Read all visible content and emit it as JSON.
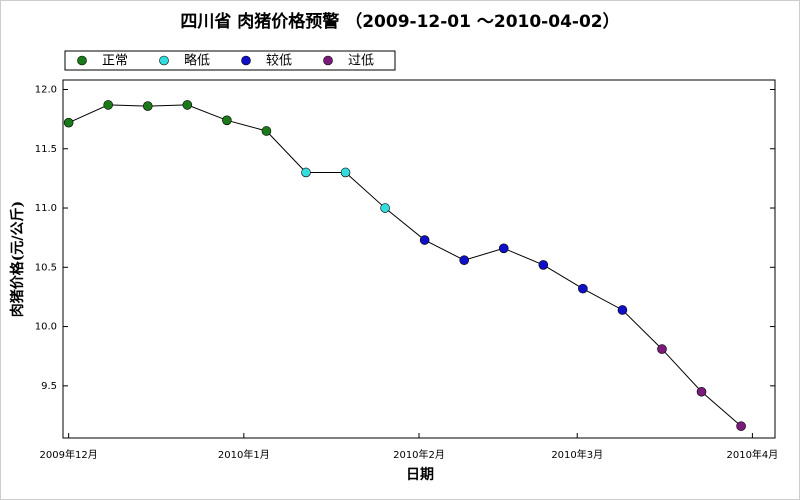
{
  "chart_data": {
    "type": "line",
    "title": "四川省 肉猪价格预警 （2009-12-01 ～2010-04-02）",
    "x_label": "日期",
    "y_label": "肉猪价格(元/公斤)",
    "x": [
      0,
      7,
      14,
      21,
      28,
      35,
      42,
      49,
      56,
      63,
      70,
      77,
      84,
      91,
      98,
      105,
      112,
      119
    ],
    "values": [
      11.72,
      11.87,
      11.86,
      11.87,
      11.74,
      11.65,
      11.3,
      11.3,
      11.0,
      10.73,
      10.56,
      10.66,
      10.52,
      10.32,
      10.14,
      9.81,
      9.45,
      9.16
    ],
    "point_colors": [
      "#1a7a1a",
      "#1a7a1a",
      "#1a7a1a",
      "#1a7a1a",
      "#1a7a1a",
      "#1a7a1a",
      "#33dddd",
      "#33dddd",
      "#33dddd",
      "#1010c8",
      "#1010c8",
      "#1010c8",
      "#1010c8",
      "#1010c8",
      "#1010c8",
      "#7a1a7a",
      "#7a1a7a",
      "#7a1a7a"
    ],
    "line_color": "#000000",
    "legend": [
      {
        "name": "正常",
        "color": "#1a7a1a"
      },
      {
        "name": "略低",
        "color": "#33dddd"
      },
      {
        "name": "较低",
        "color": "#1010c8"
      },
      {
        "name": "过低",
        "color": "#7a1a7a"
      }
    ],
    "xlim": [
      -1,
      125
    ],
    "xticks": [
      {
        "value": 0,
        "label": "2009年12月"
      },
      {
        "value": 31,
        "label": "2010年1月"
      },
      {
        "value": 62,
        "label": "2010年2月"
      },
      {
        "value": 90,
        "label": "2010年3月"
      },
      {
        "value": 121,
        "label": "2010年4月"
      }
    ],
    "ylim": [
      9.06,
      12.08
    ],
    "yticks": [
      9.5,
      {
        "value": 10,
        "label": "10.0"
      },
      10.5,
      {
        "value": 11,
        "label": "11.0"
      },
      11.5,
      {
        "value": 12,
        "label": "12.0"
      }
    ]
  }
}
